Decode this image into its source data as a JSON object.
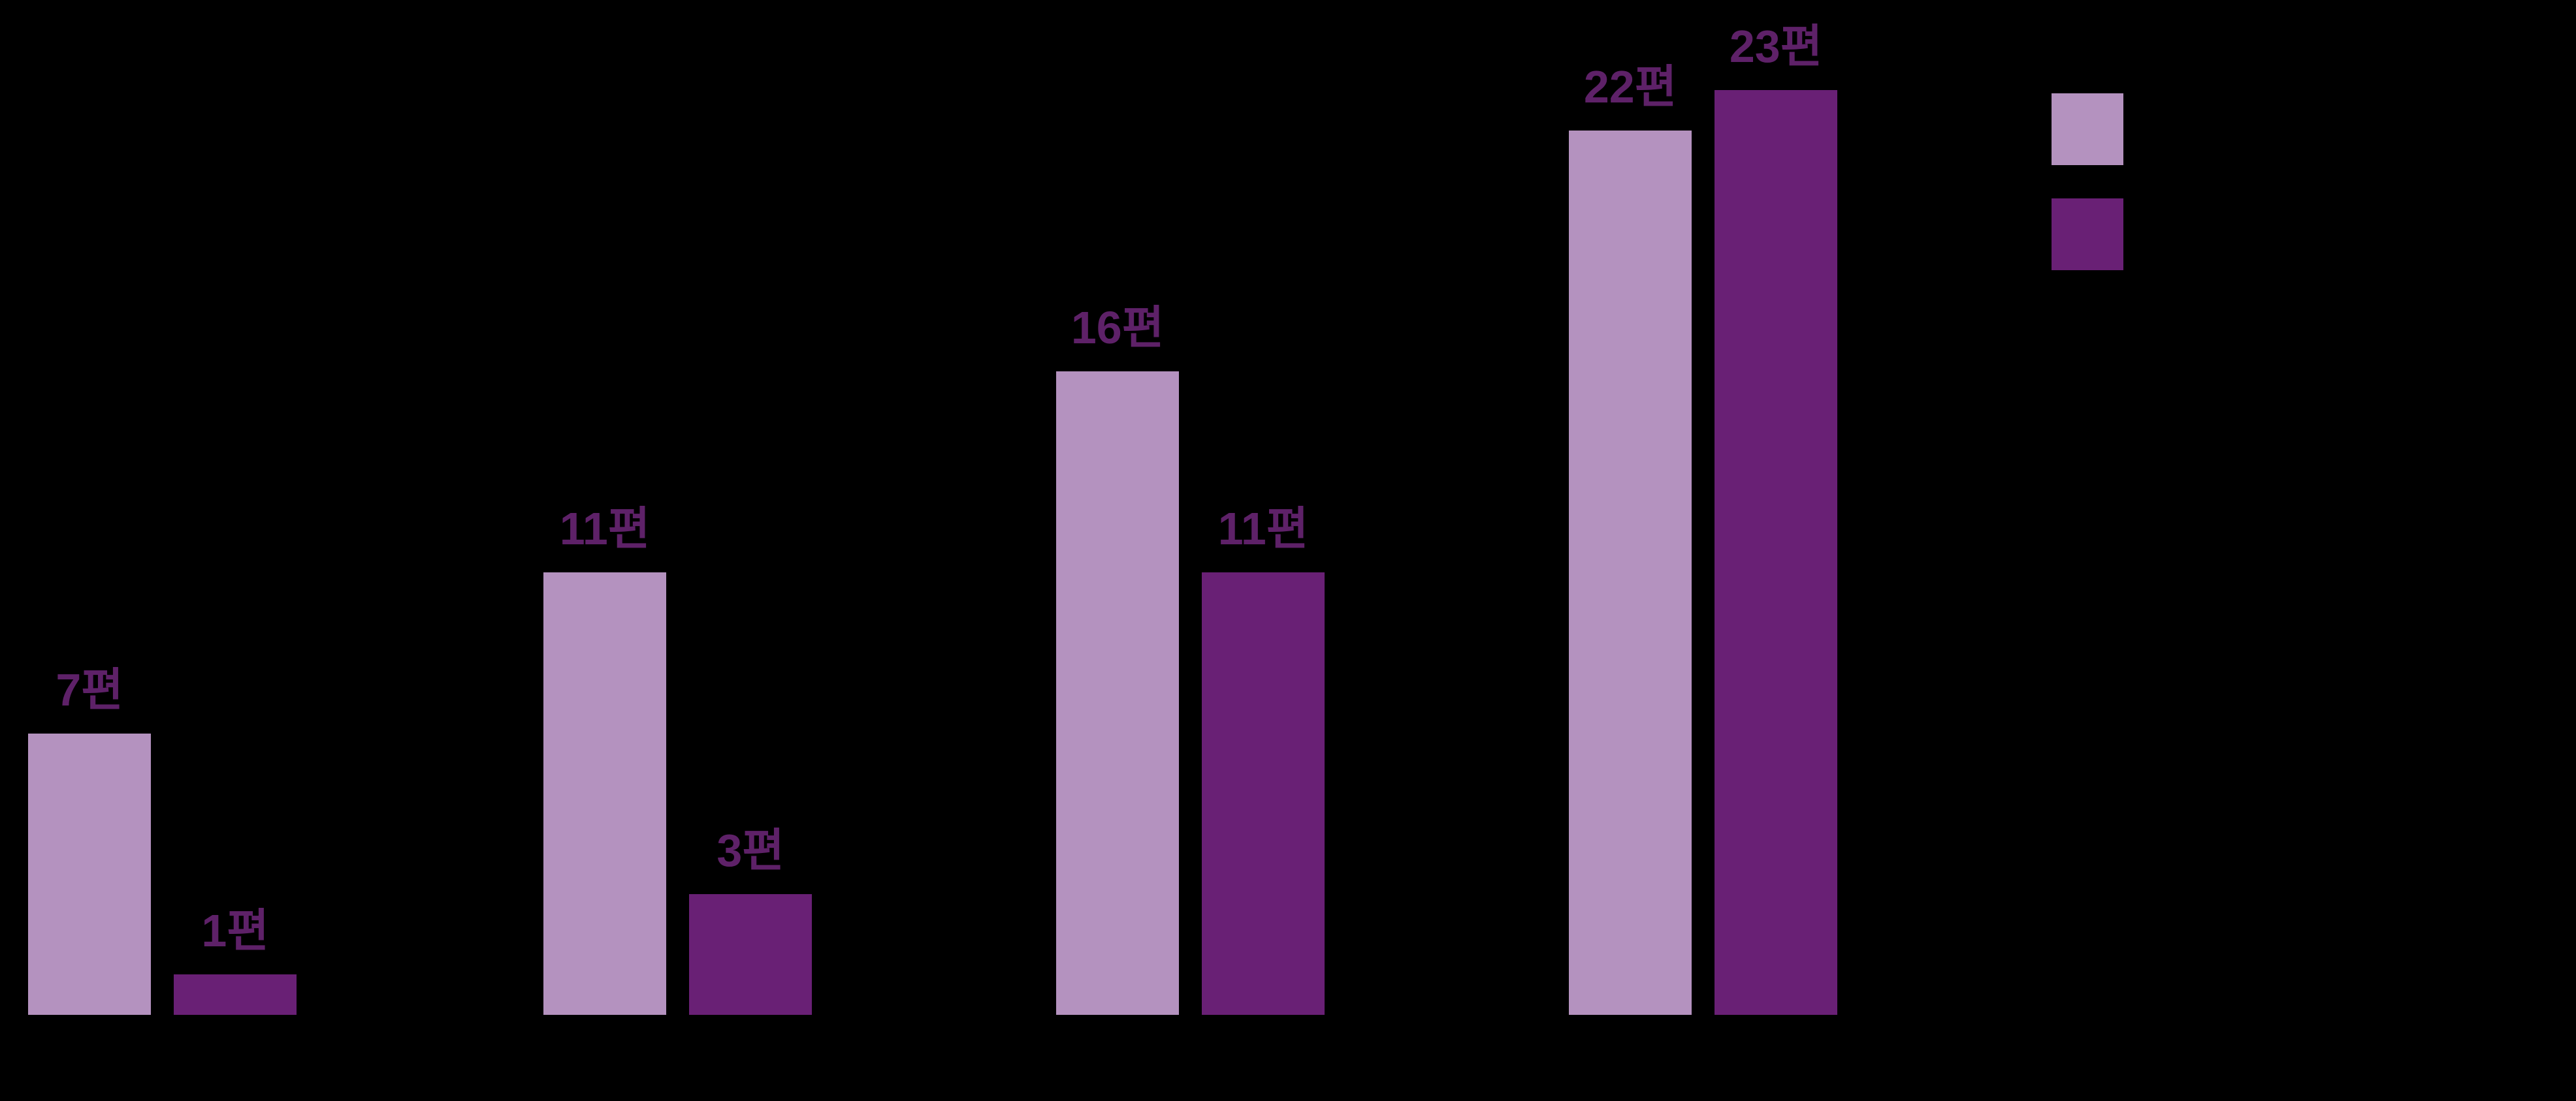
{
  "chart_data": {
    "type": "bar",
    "title": "",
    "categories": [
      "",
      "",
      "",
      ""
    ],
    "series": [
      {
        "name": "",
        "color": "#B492BF",
        "values": [
          7,
          11,
          16,
          22
        ],
        "labels": [
          "7편",
          "11편",
          "16편",
          "22편"
        ]
      },
      {
        "name": "",
        "color": "#692075",
        "values": [
          1,
          3,
          11,
          23
        ],
        "labels": [
          "1편",
          "3편",
          "11편",
          "23편"
        ]
      }
    ],
    "value_suffix": "편",
    "ylim": [
      0,
      25.3
    ],
    "grid": false,
    "legend_position": "top-right",
    "background": "#000000",
    "label_color": "#5E2168"
  }
}
